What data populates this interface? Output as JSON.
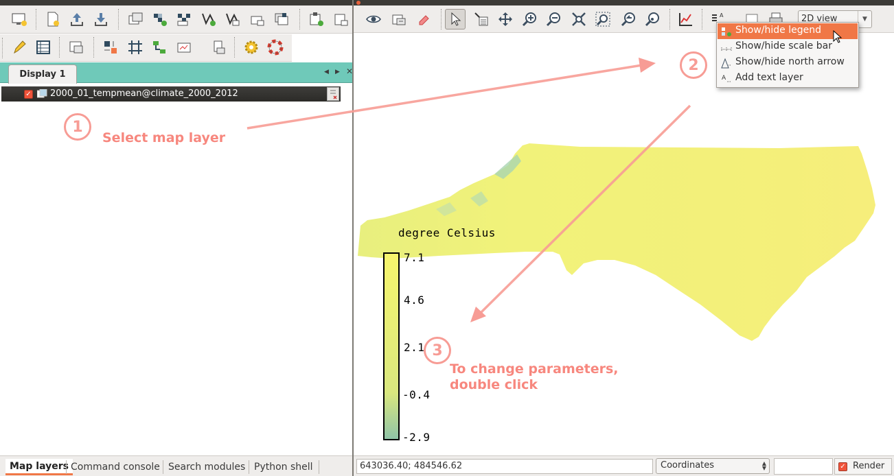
{
  "layer_manager": {
    "display_tab": "Display 1",
    "layer": {
      "name": "2000_01_tempmean@climate_2000_2012",
      "checked": true
    },
    "bottom_tabs": [
      "Map layers",
      "Command console",
      "Search modules",
      "Python shell"
    ],
    "active_tab": "Map layers"
  },
  "map_display": {
    "view_mode": "2D view",
    "statusbar": {
      "coordinates": "643036.40; 484546.62",
      "mode": "Coordinates",
      "render_label": "Render",
      "render_checked": true
    },
    "decorations_menu": [
      {
        "label": "Show/hide legend",
        "icon": "legend-icon",
        "highlighted": true
      },
      {
        "label": "Show/hide scale bar",
        "icon": "scale-bar-icon",
        "highlighted": false
      },
      {
        "label": "Show/hide north arrow",
        "icon": "north-arrow-icon",
        "highlighted": false
      },
      {
        "label": "Add text layer",
        "icon": "text-layer-icon",
        "highlighted": false
      }
    ],
    "legend": {
      "title": "degree Celsius",
      "labels": [
        "7.1",
        "4.6",
        "2.1",
        "-0.4",
        "-2.9"
      ],
      "colors": [
        "#f7f56d",
        "#d9e77f",
        "#8fc4a8"
      ]
    }
  },
  "annotations": [
    {
      "number": "1",
      "text": "Select map layer"
    },
    {
      "number": "2",
      "text": ""
    },
    {
      "number": "3",
      "text": "To change parameters,\ndouble click"
    }
  ],
  "colors": {
    "accent": "#f07746",
    "annotation": "#f7877e",
    "notebook_bar": "#6fc9b9",
    "map_fill": "#f1ef78"
  }
}
